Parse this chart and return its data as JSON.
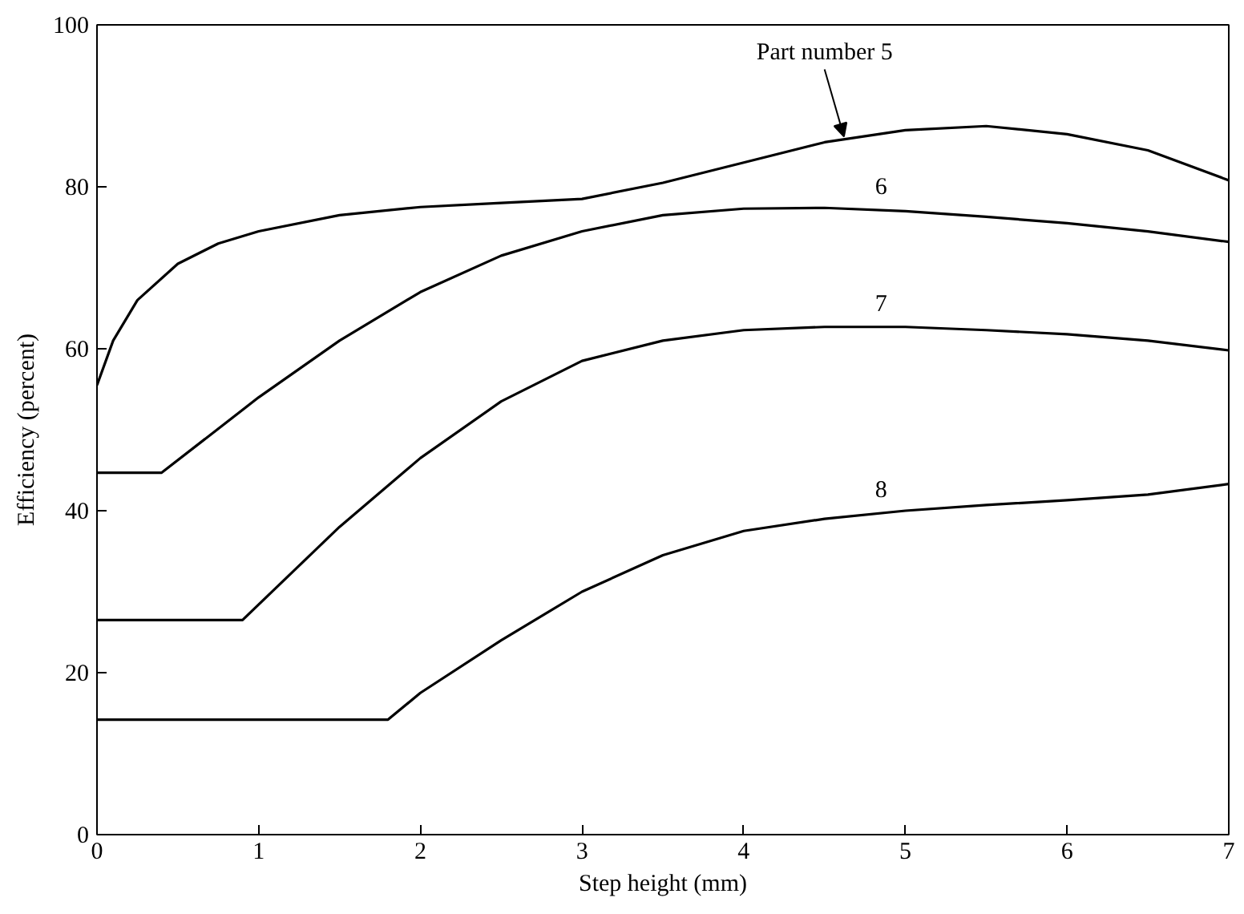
{
  "chart_data": {
    "type": "line",
    "xlabel": "Step height (mm)",
    "ylabel": "Efficiency (percent)",
    "xlim": [
      0,
      7
    ],
    "ylim": [
      0,
      100
    ],
    "xticks": [
      0,
      1,
      2,
      3,
      4,
      5,
      6,
      7
    ],
    "yticks": [
      0,
      20,
      40,
      60,
      80,
      100
    ],
    "grid": false,
    "marker": "none",
    "line_style": "solid",
    "series": [
      {
        "name": "Part number 5",
        "color": "#000000",
        "x": [
          0,
          0.1,
          0.25,
          0.5,
          0.75,
          1,
          1.5,
          2,
          2.5,
          3,
          3.5,
          4,
          4.5,
          5,
          5.5,
          6,
          6.5,
          7
        ],
        "values": [
          55.5,
          61,
          66,
          70.5,
          73,
          74.5,
          76.5,
          77.5,
          78,
          78.5,
          80.5,
          83,
          85.5,
          87,
          87.5,
          86.5,
          84.5,
          80.8
        ]
      },
      {
        "name": "6",
        "color": "#000000",
        "x": [
          0,
          0.4,
          1,
          1.5,
          2,
          2.5,
          3,
          3.5,
          4,
          4.5,
          5,
          5.5,
          6,
          6.5,
          7
        ],
        "values": [
          44.7,
          44.7,
          54,
          61,
          67,
          71.5,
          74.5,
          76.5,
          77.3,
          77.4,
          77,
          76.3,
          75.5,
          74.5,
          73.2
        ]
      },
      {
        "name": "7",
        "color": "#000000",
        "x": [
          0,
          0.9,
          1.5,
          2,
          2.5,
          3,
          3.5,
          4,
          4.5,
          5,
          5.5,
          6,
          6.5,
          7
        ],
        "values": [
          26.5,
          26.5,
          38,
          46.5,
          53.5,
          58.5,
          61,
          62.3,
          62.7,
          62.7,
          62.3,
          61.8,
          61,
          59.8
        ]
      },
      {
        "name": "8",
        "color": "#000000",
        "x": [
          0,
          1.8,
          2,
          2.5,
          3,
          3.5,
          4,
          4.5,
          5,
          5.5,
          6,
          6.5,
          7
        ],
        "values": [
          14.2,
          14.2,
          17.5,
          24,
          30,
          34.5,
          37.5,
          39,
          40,
          40.7,
          41.3,
          42,
          43.3
        ]
      }
    ]
  }
}
